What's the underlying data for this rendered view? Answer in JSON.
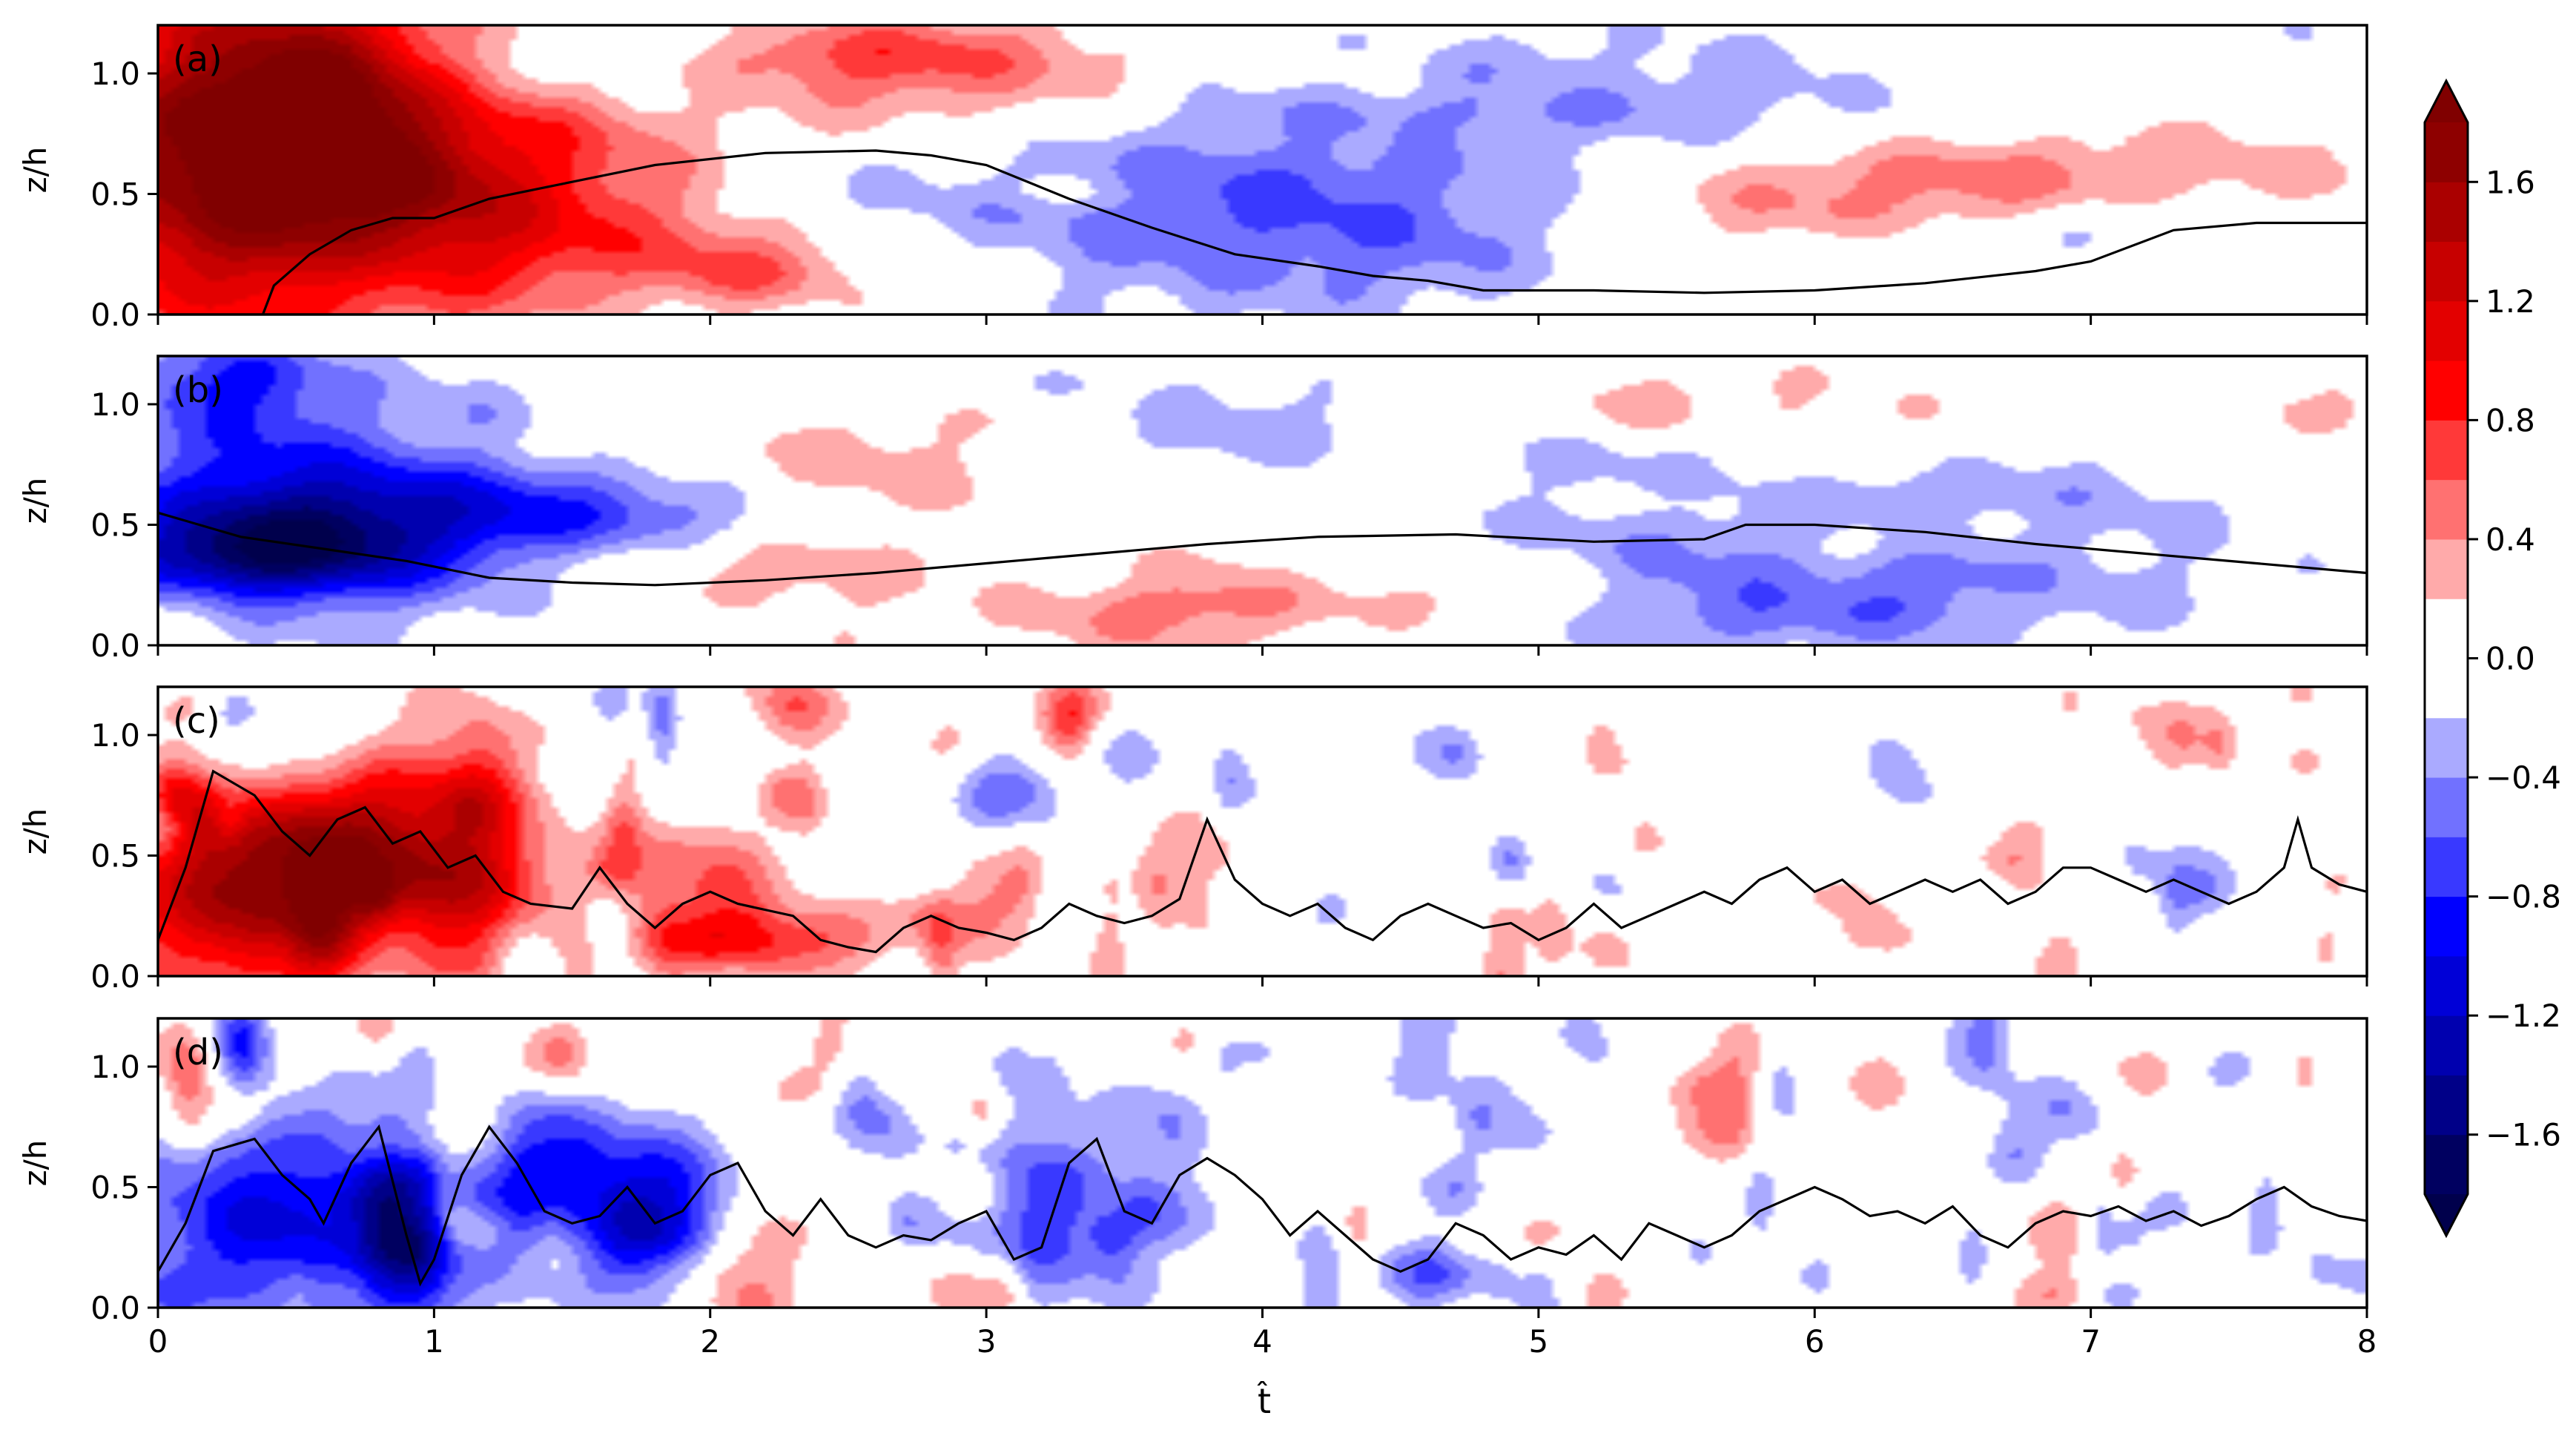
{
  "chart_data": {
    "type": "heatmap",
    "x_label": "t̂",
    "y_label": "z/h",
    "xlim": [
      0,
      8
    ],
    "ylim": [
      0,
      1.2
    ],
    "x_ticks": [
      "0",
      "1",
      "2",
      "3",
      "4",
      "5",
      "6",
      "7",
      "8"
    ],
    "y_ticks": [
      "0.0",
      "0.5",
      "1.0"
    ],
    "colorbar": {
      "range": [
        -1.8,
        1.8
      ],
      "levels": [
        -1.8,
        -1.6,
        -1.4,
        -1.2,
        -1.0,
        -0.8,
        -0.6,
        -0.4,
        -0.2,
        0.0,
        0.2,
        0.4,
        0.6,
        0.8,
        1.0,
        1.2,
        1.4,
        1.6,
        1.8
      ],
      "tick_labels": [
        "1.6",
        "1.2",
        "0.8",
        "0.4",
        "0.0",
        "−0.4",
        "−0.8",
        "−1.2",
        "−1.6"
      ],
      "tick_values": [
        1.6,
        1.2,
        0.8,
        0.4,
        0.0,
        -0.4,
        -0.8,
        -1.2,
        -1.6
      ],
      "extend": "both",
      "colormap": "seismic"
    },
    "panels": [
      {
        "label": "(a)",
        "mode": "smooth",
        "sign": 1,
        "blobs": [
          [
            0.3,
            0.62,
            0.55,
            0.5,
            1.8
          ],
          [
            0.55,
            0.85,
            0.3,
            0.25,
            0.9
          ],
          [
            1.0,
            0.42,
            0.35,
            0.3,
            0.6
          ],
          [
            1.5,
            0.45,
            0.35,
            0.25,
            0.5
          ],
          [
            2.2,
            0.2,
            0.35,
            0.15,
            0.35
          ],
          [
            2.5,
            1.05,
            0.4,
            0.15,
            0.3
          ],
          [
            3.2,
            0.95,
            0.4,
            0.2,
            0.25
          ],
          [
            4.3,
            0.3,
            0.9,
            0.25,
            -0.5
          ],
          [
            3.8,
            0.65,
            0.8,
            0.25,
            -0.3
          ],
          [
            5.5,
            0.95,
            0.9,
            0.25,
            -0.25
          ],
          [
            6.2,
            0.55,
            0.8,
            0.2,
            0.35
          ],
          [
            7.2,
            0.45,
            0.8,
            0.25,
            0.3
          ],
          [
            6.8,
            1.05,
            0.5,
            0.15,
            0.2
          ]
        ],
        "contour": [
          [
            0.38,
            0.0
          ],
          [
            0.42,
            0.12
          ],
          [
            0.55,
            0.25
          ],
          [
            0.7,
            0.35
          ],
          [
            0.85,
            0.4
          ],
          [
            1.0,
            0.4
          ],
          [
            1.2,
            0.48
          ],
          [
            1.5,
            0.55
          ],
          [
            1.8,
            0.62
          ],
          [
            2.2,
            0.67
          ],
          [
            2.6,
            0.68
          ],
          [
            2.8,
            0.66
          ],
          [
            3.0,
            0.62
          ],
          [
            3.3,
            0.48
          ],
          [
            3.6,
            0.36
          ],
          [
            3.9,
            0.25
          ],
          [
            4.2,
            0.2
          ],
          [
            4.4,
            0.16
          ],
          [
            4.6,
            0.14
          ],
          [
            4.8,
            0.1
          ],
          [
            5.2,
            0.1
          ],
          [
            5.6,
            0.09
          ],
          [
            6.0,
            0.1
          ],
          [
            6.4,
            0.13
          ],
          [
            6.8,
            0.18
          ],
          [
            7.0,
            0.22
          ],
          [
            7.3,
            0.35
          ],
          [
            7.6,
            0.38
          ],
          [
            8.0,
            0.38
          ]
        ]
      },
      {
        "label": "(b)",
        "mode": "smooth",
        "sign": -1,
        "blobs": [
          [
            0.35,
            0.35,
            0.4,
            0.2,
            -1.3
          ],
          [
            0.8,
            0.5,
            0.5,
            0.2,
            -0.9
          ],
          [
            1.4,
            0.55,
            0.45,
            0.2,
            -0.6
          ],
          [
            0.3,
            0.85,
            0.4,
            0.2,
            -0.5
          ],
          [
            2.2,
            0.3,
            0.4,
            0.2,
            0.35
          ],
          [
            2.6,
            0.75,
            0.4,
            0.2,
            0.3
          ],
          [
            3.8,
            0.9,
            0.5,
            0.15,
            -0.3
          ],
          [
            5.2,
            0.35,
            1.2,
            0.2,
            -0.25
          ],
          [
            6.5,
            0.2,
            0.8,
            0.15,
            -0.3
          ],
          [
            4.5,
            0.2,
            0.6,
            0.12,
            0.3
          ],
          [
            3.5,
            0.15,
            0.5,
            0.12,
            0.25
          ],
          [
            5.8,
            1.0,
            0.6,
            0.12,
            0.25
          ],
          [
            7.0,
            0.6,
            0.6,
            0.15,
            -0.2
          ]
        ],
        "contour": [
          [
            0.0,
            0.55
          ],
          [
            0.3,
            0.45
          ],
          [
            0.6,
            0.4
          ],
          [
            0.9,
            0.35
          ],
          [
            1.2,
            0.28
          ],
          [
            1.5,
            0.26
          ],
          [
            1.8,
            0.25
          ],
          [
            2.2,
            0.27
          ],
          [
            2.6,
            0.3
          ],
          [
            3.0,
            0.34
          ],
          [
            3.4,
            0.38
          ],
          [
            3.8,
            0.42
          ],
          [
            4.2,
            0.45
          ],
          [
            4.7,
            0.46
          ],
          [
            5.2,
            0.43
          ],
          [
            5.6,
            0.44
          ],
          [
            5.75,
            0.5
          ],
          [
            6.0,
            0.5
          ],
          [
            6.4,
            0.47
          ],
          [
            6.8,
            0.42
          ],
          [
            7.2,
            0.38
          ],
          [
            7.6,
            0.34
          ],
          [
            8.0,
            0.3
          ]
        ]
      },
      {
        "label": "(c)",
        "mode": "turb",
        "sign": 1,
        "blobs": [
          [
            0.3,
            0.35,
            0.35,
            0.3,
            1.4
          ],
          [
            0.75,
            0.55,
            0.3,
            0.3,
            1.2
          ],
          [
            1.15,
            0.4,
            0.2,
            0.2,
            0.8
          ],
          [
            2.2,
            0.15,
            0.3,
            0.1,
            0.8
          ],
          [
            1.9,
            0.4,
            0.2,
            0.2,
            0.6
          ],
          [
            0.5,
            0.9,
            0.2,
            0.15,
            -0.6
          ],
          [
            3.3,
            1.05,
            0.1,
            0.1,
            0.7
          ]
        ],
        "contour": [
          [
            0.0,
            0.15
          ],
          [
            0.1,
            0.45
          ],
          [
            0.2,
            0.85
          ],
          [
            0.35,
            0.75
          ],
          [
            0.45,
            0.6
          ],
          [
            0.55,
            0.5
          ],
          [
            0.65,
            0.65
          ],
          [
            0.75,
            0.7
          ],
          [
            0.85,
            0.55
          ],
          [
            0.95,
            0.6
          ],
          [
            1.05,
            0.45
          ],
          [
            1.15,
            0.5
          ],
          [
            1.25,
            0.35
          ],
          [
            1.35,
            0.3
          ],
          [
            1.5,
            0.28
          ],
          [
            1.6,
            0.45
          ],
          [
            1.7,
            0.3
          ],
          [
            1.8,
            0.2
          ],
          [
            1.9,
            0.3
          ],
          [
            2.0,
            0.35
          ],
          [
            2.1,
            0.3
          ],
          [
            2.3,
            0.25
          ],
          [
            2.4,
            0.15
          ],
          [
            2.5,
            0.12
          ],
          [
            2.6,
            0.1
          ],
          [
            2.7,
            0.2
          ],
          [
            2.8,
            0.25
          ],
          [
            2.9,
            0.2
          ],
          [
            3.0,
            0.18
          ],
          [
            3.1,
            0.15
          ],
          [
            3.2,
            0.2
          ],
          [
            3.3,
            0.3
          ],
          [
            3.4,
            0.25
          ],
          [
            3.5,
            0.22
          ],
          [
            3.6,
            0.25
          ],
          [
            3.7,
            0.32
          ],
          [
            3.8,
            0.65
          ],
          [
            3.9,
            0.4
          ],
          [
            4.0,
            0.3
          ],
          [
            4.1,
            0.25
          ],
          [
            4.2,
            0.3
          ],
          [
            4.3,
            0.2
          ],
          [
            4.4,
            0.15
          ],
          [
            4.5,
            0.25
          ],
          [
            4.6,
            0.3
          ],
          [
            4.7,
            0.25
          ],
          [
            4.8,
            0.2
          ],
          [
            4.9,
            0.22
          ],
          [
            5.0,
            0.15
          ],
          [
            5.1,
            0.2
          ],
          [
            5.2,
            0.3
          ],
          [
            5.3,
            0.2
          ],
          [
            5.4,
            0.25
          ],
          [
            5.5,
            0.3
          ],
          [
            5.6,
            0.35
          ],
          [
            5.7,
            0.3
          ],
          [
            5.8,
            0.4
          ],
          [
            5.9,
            0.45
          ],
          [
            6.0,
            0.35
          ],
          [
            6.1,
            0.4
          ],
          [
            6.2,
            0.3
          ],
          [
            6.3,
            0.35
          ],
          [
            6.4,
            0.4
          ],
          [
            6.5,
            0.35
          ],
          [
            6.6,
            0.4
          ],
          [
            6.7,
            0.3
          ],
          [
            6.8,
            0.35
          ],
          [
            6.9,
            0.45
          ],
          [
            7.0,
            0.45
          ],
          [
            7.1,
            0.4
          ],
          [
            7.2,
            0.35
          ],
          [
            7.3,
            0.4
          ],
          [
            7.4,
            0.35
          ],
          [
            7.5,
            0.3
          ],
          [
            7.6,
            0.35
          ],
          [
            7.7,
            0.45
          ],
          [
            7.75,
            0.65
          ],
          [
            7.8,
            0.45
          ],
          [
            7.9,
            0.38
          ],
          [
            8.0,
            0.35
          ]
        ]
      },
      {
        "label": "(d)",
        "mode": "turb",
        "sign": -1,
        "blobs": [
          [
            0.4,
            0.35,
            0.35,
            0.3,
            -1.0
          ],
          [
            0.85,
            0.4,
            0.15,
            0.35,
            -1.2
          ],
          [
            1.5,
            0.5,
            0.3,
            0.25,
            -1.0
          ],
          [
            1.8,
            0.35,
            0.2,
            0.2,
            -0.7
          ],
          [
            3.2,
            0.4,
            0.2,
            0.3,
            -0.7
          ],
          [
            1.0,
            0.75,
            0.15,
            0.15,
            0.5
          ],
          [
            1.45,
            1.05,
            0.1,
            0.1,
            0.6
          ],
          [
            4.7,
            0.15,
            0.2,
            0.1,
            -0.7
          ]
        ],
        "contour": [
          [
            0.0,
            0.15
          ],
          [
            0.1,
            0.35
          ],
          [
            0.2,
            0.65
          ],
          [
            0.35,
            0.7
          ],
          [
            0.45,
            0.55
          ],
          [
            0.55,
            0.45
          ],
          [
            0.6,
            0.35
          ],
          [
            0.7,
            0.6
          ],
          [
            0.8,
            0.75
          ],
          [
            0.9,
            0.3
          ],
          [
            0.95,
            0.1
          ],
          [
            1.0,
            0.2
          ],
          [
            1.1,
            0.55
          ],
          [
            1.2,
            0.75
          ],
          [
            1.3,
            0.6
          ],
          [
            1.4,
            0.4
          ],
          [
            1.5,
            0.35
          ],
          [
            1.6,
            0.38
          ],
          [
            1.7,
            0.5
          ],
          [
            1.8,
            0.35
          ],
          [
            1.9,
            0.4
          ],
          [
            2.0,
            0.55
          ],
          [
            2.1,
            0.6
          ],
          [
            2.2,
            0.4
          ],
          [
            2.3,
            0.3
          ],
          [
            2.4,
            0.45
          ],
          [
            2.5,
            0.3
          ],
          [
            2.6,
            0.25
          ],
          [
            2.7,
            0.3
          ],
          [
            2.8,
            0.28
          ],
          [
            2.9,
            0.35
          ],
          [
            3.0,
            0.4
          ],
          [
            3.05,
            0.3
          ],
          [
            3.1,
            0.2
          ],
          [
            3.2,
            0.25
          ],
          [
            3.3,
            0.6
          ],
          [
            3.4,
            0.7
          ],
          [
            3.5,
            0.4
          ],
          [
            3.6,
            0.35
          ],
          [
            3.7,
            0.55
          ],
          [
            3.8,
            0.62
          ],
          [
            3.9,
            0.55
          ],
          [
            4.0,
            0.45
          ],
          [
            4.1,
            0.3
          ],
          [
            4.2,
            0.4
          ],
          [
            4.3,
            0.3
          ],
          [
            4.4,
            0.2
          ],
          [
            4.5,
            0.15
          ],
          [
            4.6,
            0.2
          ],
          [
            4.7,
            0.35
          ],
          [
            4.8,
            0.3
          ],
          [
            4.9,
            0.2
          ],
          [
            5.0,
            0.25
          ],
          [
            5.1,
            0.22
          ],
          [
            5.2,
            0.3
          ],
          [
            5.3,
            0.2
          ],
          [
            5.4,
            0.35
          ],
          [
            5.5,
            0.3
          ],
          [
            5.6,
            0.25
          ],
          [
            5.7,
            0.3
          ],
          [
            5.8,
            0.4
          ],
          [
            5.9,
            0.45
          ],
          [
            6.0,
            0.5
          ],
          [
            6.1,
            0.45
          ],
          [
            6.2,
            0.38
          ],
          [
            6.3,
            0.4
          ],
          [
            6.4,
            0.35
          ],
          [
            6.5,
            0.42
          ],
          [
            6.6,
            0.3
          ],
          [
            6.7,
            0.25
          ],
          [
            6.8,
            0.35
          ],
          [
            6.9,
            0.4
          ],
          [
            7.0,
            0.38
          ],
          [
            7.1,
            0.42
          ],
          [
            7.2,
            0.36
          ],
          [
            7.3,
            0.4
          ],
          [
            7.4,
            0.34
          ],
          [
            7.5,
            0.38
          ],
          [
            7.6,
            0.45
          ],
          [
            7.7,
            0.5
          ],
          [
            7.8,
            0.42
          ],
          [
            7.9,
            0.38
          ],
          [
            8.0,
            0.36
          ]
        ]
      }
    ]
  }
}
